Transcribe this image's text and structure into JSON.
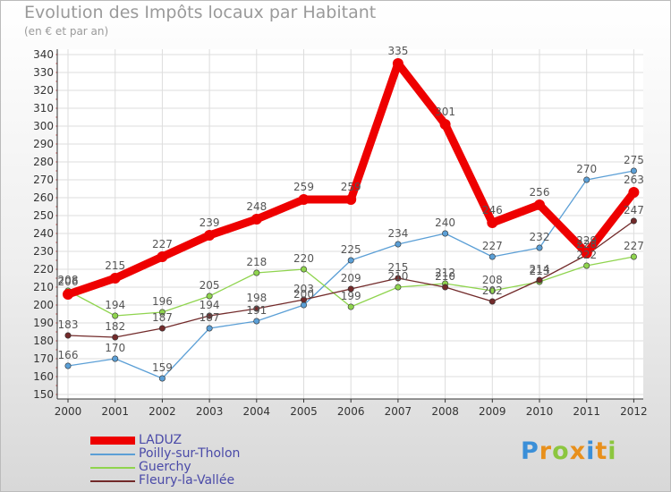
{
  "chart_data": {
    "type": "line",
    "title": "Evolution des Impôts locaux par Habitant",
    "subtitle": "(en € et par an)",
    "xlabel": "",
    "ylabel": "",
    "ylim": [
      150,
      340
    ],
    "yticks": [
      150,
      160,
      170,
      180,
      190,
      200,
      210,
      220,
      230,
      240,
      250,
      260,
      270,
      280,
      290,
      300,
      310,
      320,
      330,
      340
    ],
    "categories": [
      "2000",
      "2001",
      "2002",
      "2003",
      "2004",
      "2005",
      "2006",
      "2007",
      "2008",
      "2009",
      "2010",
      "2011",
      "2012"
    ],
    "grid": true,
    "legend_position": "bottom-left",
    "series": [
      {
        "name": "LADUZ",
        "color": "#ee0000",
        "values": [
          206,
          215,
          227,
          239,
          248,
          259,
          259,
          335,
          301,
          246,
          256,
          229,
          263
        ]
      },
      {
        "name": "Poilly-sur-Tholon",
        "color": "#5b9fd6",
        "values": [
          166,
          170,
          159,
          187,
          191,
          200,
          225,
          234,
          240,
          227,
          232,
          270,
          275
        ]
      },
      {
        "name": "Guerchy",
        "color": "#8fd44e",
        "values": [
          208,
          194,
          196,
          205,
          218,
          220,
          199,
          210,
          212,
          208,
          213,
          222,
          227
        ]
      },
      {
        "name": "Fleury-la-Vallée",
        "color": "#722a2a",
        "values": [
          183,
          182,
          187,
          194,
          198,
          203,
          209,
          215,
          210,
          202,
          214,
          228,
          247
        ]
      }
    ]
  },
  "logo": {
    "letters": [
      "P",
      "r",
      "o",
      "x",
      "i",
      "t",
      "i"
    ],
    "colors": [
      "#3a8fd8",
      "#e8901c",
      "#8cc63f",
      "#e8901c",
      "#3a8fd8",
      "#e8901c",
      "#8cc63f"
    ]
  }
}
